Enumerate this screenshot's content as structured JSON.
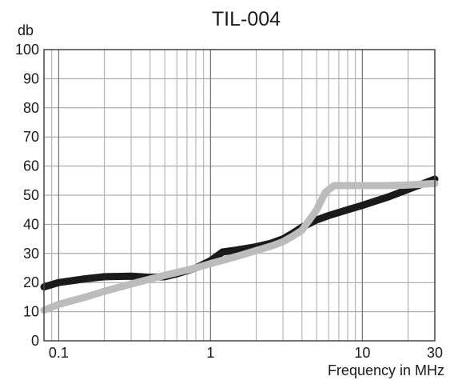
{
  "chart_data": {
    "type": "line",
    "title": "TIL-004",
    "ylabel": "db",
    "xlabel": "Frequency in MHz",
    "x_scale": "log",
    "xlim": [
      0.08,
      30
    ],
    "ylim": [
      0,
      100
    ],
    "grid": true,
    "legend": "none",
    "y_ticks": [
      "0",
      "10",
      "20",
      "30",
      "40",
      "50",
      "60",
      "70",
      "80",
      "90",
      "100"
    ],
    "x_ticks": [
      {
        "value": 0.1,
        "label": "0.1"
      },
      {
        "value": 1,
        "label": "1"
      },
      {
        "value": 10,
        "label": "10"
      },
      {
        "value": 30,
        "label": "30"
      }
    ],
    "series": [
      {
        "color": "#1a1a1a",
        "x": [
          0.08,
          0.1,
          0.15,
          0.2,
          0.3,
          0.4,
          0.5,
          0.6,
          0.8,
          1.0,
          1.2,
          1.5,
          2.0,
          2.5,
          3.0,
          3.5,
          4.0,
          5.0,
          6.0,
          8.0,
          10,
          15,
          20,
          30
        ],
        "values": [
          18.5,
          20,
          21.3,
          22,
          22.2,
          21.8,
          22,
          23,
          25,
          27.5,
          30.5,
          31.2,
          32.3,
          33.5,
          35,
          37,
          39,
          41.5,
          43,
          45,
          46.5,
          49.5,
          52,
          55.5
        ]
      },
      {
        "color": "#bcbcbc",
        "x": [
          0.08,
          0.1,
          0.15,
          0.2,
          0.3,
          0.5,
          0.8,
          1.0,
          1.5,
          2.0,
          2.5,
          3.0,
          3.5,
          4.0,
          5.0,
          5.7,
          6.5,
          8.0,
          10,
          15,
          20,
          30
        ],
        "values": [
          10.5,
          12.5,
          15,
          17,
          19.5,
          22.5,
          25,
          26.5,
          29,
          31,
          32.5,
          34,
          36,
          38,
          45,
          51,
          53.3,
          53.3,
          53.3,
          53.3,
          53.5,
          54
        ]
      }
    ]
  }
}
